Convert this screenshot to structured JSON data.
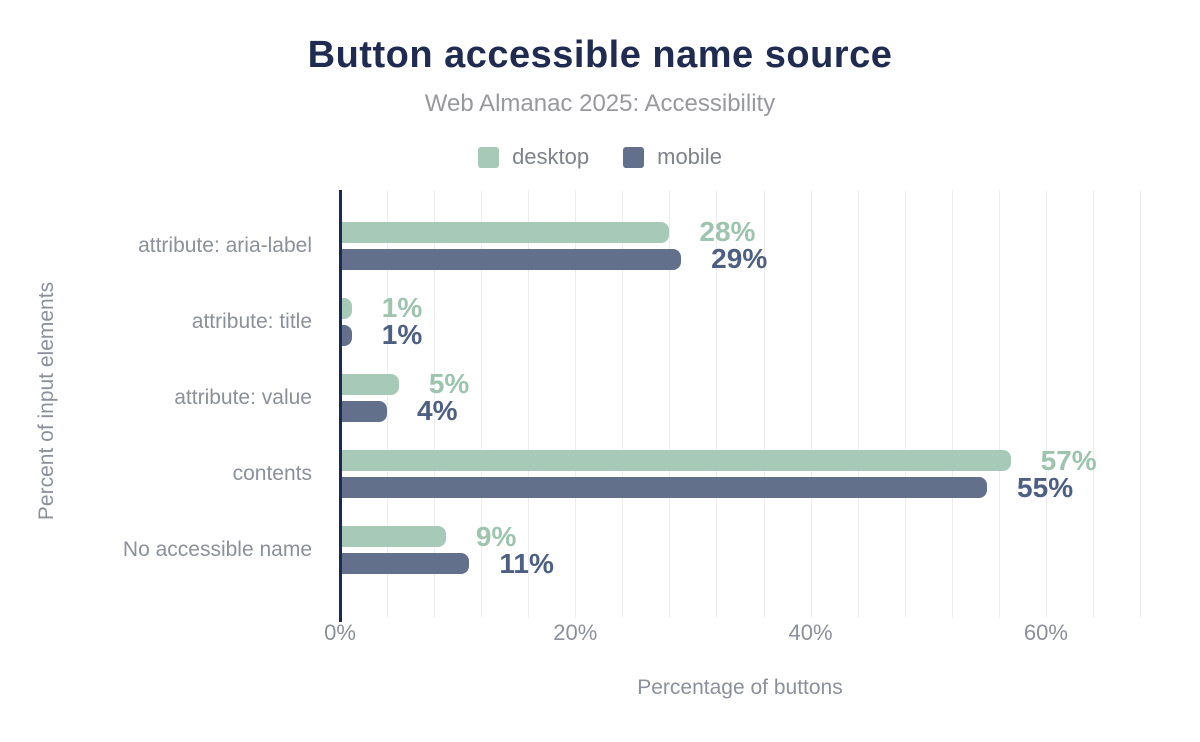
{
  "chart_data": {
    "type": "bar",
    "orientation": "horizontal",
    "title": "Button accessible name source",
    "subtitle": "Web Almanac 2025: Accessibility",
    "categories": [
      "attribute: aria-label",
      "attribute: title",
      "attribute: value",
      "contents",
      "No accessible name"
    ],
    "series": [
      {
        "name": "desktop",
        "color": "#a7c9b7",
        "label_color": "#9dc4ae",
        "values": [
          28,
          1,
          5,
          57,
          9
        ]
      },
      {
        "name": "mobile",
        "color": "#62708c",
        "label_color": "#4d5f82",
        "values": [
          29,
          1,
          4,
          55,
          11
        ]
      }
    ],
    "value_suffix": "%",
    "xlabel": "Percentage of buttons",
    "ylabel": "Percent of input elements",
    "xlim": [
      0,
      68
    ],
    "x_ticks": [
      {
        "value": 0,
        "label": "0%"
      },
      {
        "value": 20,
        "label": "20%"
      },
      {
        "value": 40,
        "label": "40%"
      },
      {
        "value": 60,
        "label": "60%"
      }
    ],
    "minor_grid_step": 4,
    "grid": true,
    "legend_position": "top",
    "axis_color": "#1b2a4e",
    "grid_color": "#ededf0",
    "text_color": "#8b909a",
    "title_color": "#1f2b50",
    "subtitle_color": "#98999d"
  }
}
